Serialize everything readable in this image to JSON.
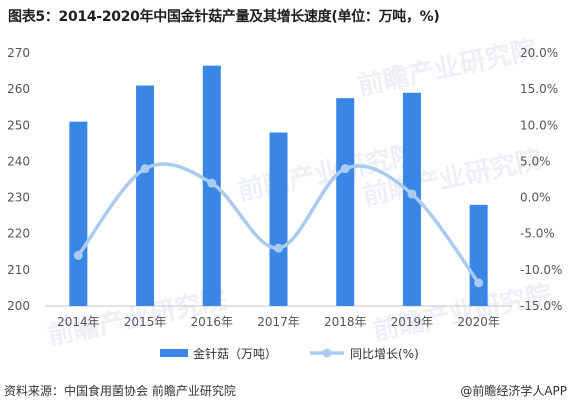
{
  "title": "图表5：2014-2020年中国金针菇产量及其增长速度(单位：万吨，%)",
  "source": "资料来源：中国食用菌协会 前瞻产业研究院",
  "brand": "@前瞻经济学人APP",
  "watermark": "前瞻产业研究院",
  "colors": {
    "bar": "#3a86e6",
    "line": "#a8cbef",
    "axis": "#c8c8c8"
  },
  "chart_data": {
    "type": "bar",
    "categories": [
      "2014年",
      "2015年",
      "2016年",
      "2017年",
      "2018年",
      "2019年",
      "2020年"
    ],
    "series": [
      {
        "name": "金针菇（万吨）",
        "type": "bar",
        "axis": "left",
        "values": [
          251,
          261,
          266.5,
          248,
          257.5,
          259,
          228
        ]
      },
      {
        "name": "同比增长(%)",
        "type": "line",
        "axis": "right",
        "values": [
          -8.0,
          4.0,
          2.0,
          -7.0,
          4.0,
          0.5,
          -11.8
        ]
      }
    ],
    "yleft": {
      "lim": [
        200,
        270
      ],
      "ticks": [
        "200",
        "210",
        "220",
        "230",
        "240",
        "250",
        "260",
        "270"
      ]
    },
    "yright": {
      "lim": [
        -15,
        20
      ],
      "ticks": [
        "-15.0%",
        "-10.0%",
        "-5.0%",
        "0.0%",
        "5.0%",
        "10.0%",
        "15.0%",
        "20.0%"
      ]
    },
    "legend": "bottom-center",
    "grid": false
  }
}
